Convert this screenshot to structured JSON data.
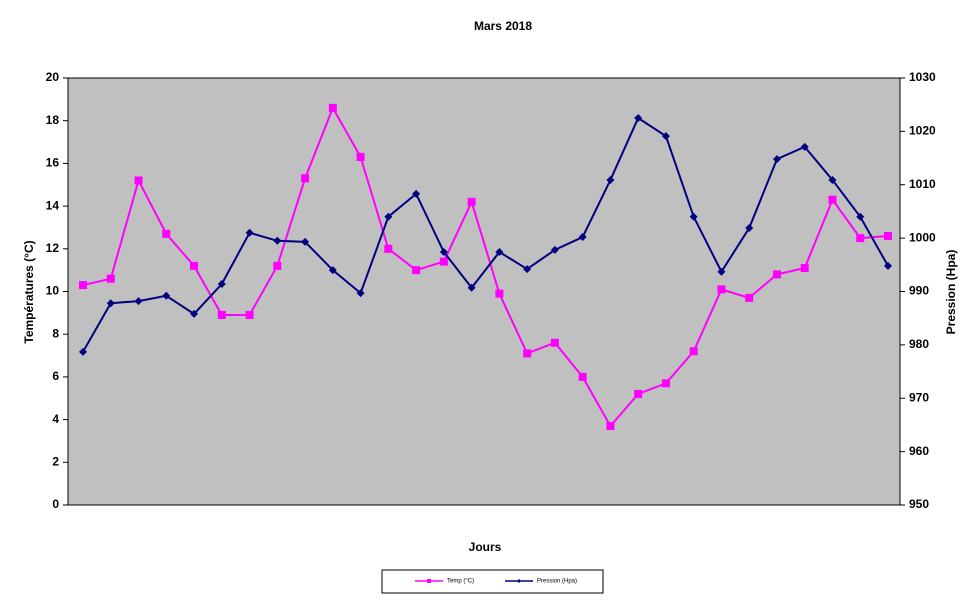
{
  "chart_data": {
    "type": "line",
    "title": "Mars 2018",
    "xlabel": "Jours",
    "ylabel": "Températures (°C)",
    "y2label": "Pression (Hpa)",
    "categories": [
      null,
      null,
      null,
      null,
      null,
      null,
      null,
      null,
      null,
      null,
      null,
      null,
      null,
      null,
      null,
      null,
      null,
      null,
      null,
      null,
      null,
      null,
      null,
      null,
      null,
      null,
      null,
      null,
      null,
      null
    ],
    "series": [
      {
        "name": "Temp (°C)",
        "color": "#ff00ff",
        "marker": "square",
        "values": [
          10.3,
          10.6,
          15.2,
          12.7,
          11.2,
          8.9,
          8.9,
          11.2,
          15.3,
          18.6,
          16.3,
          12.0,
          11.0,
          11.4,
          14.2,
          9.9,
          7.1,
          7.6,
          6.0,
          3.7,
          5.2,
          5.7,
          7.2,
          10.1,
          9.7,
          10.8,
          11.1,
          14.3,
          12.5,
          12.6
        ]
      },
      {
        "name": "Pression (Hpa)",
        "color": "#000080",
        "marker": "diamond",
        "axis": "y2",
        "values": [
          978.7,
          987.8,
          988.2,
          989.2,
          985.8,
          991.4,
          1001.0,
          999.5,
          999.3,
          994.0,
          989.7,
          1004.0,
          1008.3,
          997.4,
          990.7,
          997.4,
          994.2,
          997.8,
          1000.2,
          1010.9,
          1022.5,
          1019.1,
          1004.0,
          993.7,
          1001.9,
          1014.8,
          1017.1,
          1010.9,
          1004.0,
          994.8
        ]
      }
    ],
    "ylim": [
      0,
      20
    ],
    "yticks": [
      0,
      2,
      4,
      6,
      8,
      10,
      12,
      14,
      16,
      18,
      20
    ],
    "y2lim": [
      950,
      1030
    ],
    "y2ticks": [
      950,
      960,
      970,
      980,
      990,
      1000,
      1010,
      1020,
      1030
    ],
    "plot_background": "#c0c0c0",
    "legend": "bottom"
  }
}
